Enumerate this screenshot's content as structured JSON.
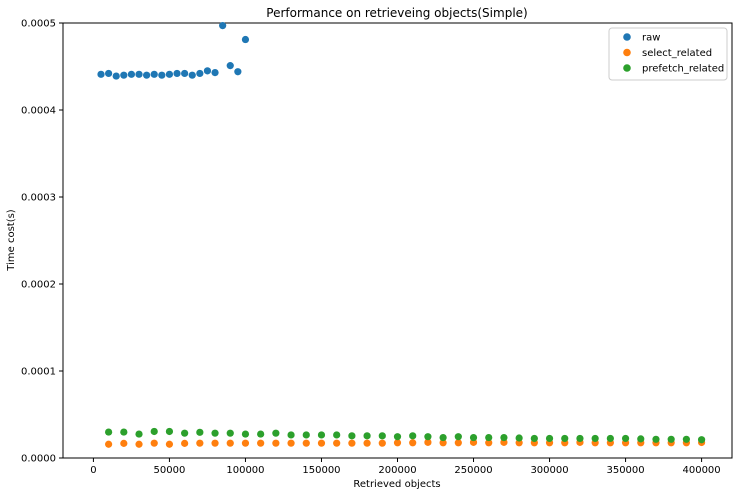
{
  "chart_data": {
    "type": "scatter",
    "title": "Performance on retrieveing objects(Simple)",
    "xlabel": "Retrieved objects",
    "ylabel": "Time cost(s)",
    "xlim": [
      -20000,
      420000
    ],
    "ylim": [
      0,
      0.0005
    ],
    "xticks": [
      0,
      50000,
      100000,
      150000,
      200000,
      250000,
      300000,
      350000,
      400000
    ],
    "yticks": [
      0.0,
      0.0001,
      0.0002,
      0.0003,
      0.0004,
      0.0005
    ],
    "xtick_labels": [
      "0",
      "50000",
      "100000",
      "150000",
      "200000",
      "250000",
      "300000",
      "350000",
      "400000"
    ],
    "ytick_labels": [
      "0.0000",
      "0.0001",
      "0.0002",
      "0.0003",
      "0.0004",
      "0.0005"
    ],
    "grid": false,
    "legend_position": "top-right",
    "series": [
      {
        "name": "raw",
        "color": "#1f77b4",
        "x": [
          5000,
          10000,
          15000,
          20000,
          25000,
          30000,
          35000,
          40000,
          45000,
          50000,
          55000,
          60000,
          65000,
          70000,
          75000,
          80000,
          85000,
          90000,
          95000,
          100000
        ],
        "y": [
          0.000441,
          0.000442,
          0.000439,
          0.00044,
          0.000441,
          0.000441,
          0.00044,
          0.000441,
          0.00044,
          0.000441,
          0.000442,
          0.000442,
          0.00044,
          0.000442,
          0.000445,
          0.000443,
          0.000497,
          0.000451,
          0.000444,
          0.000481
        ]
      },
      {
        "name": "select_related",
        "color": "#ff7f0e",
        "x": [
          10000,
          20000,
          30000,
          40000,
          50000,
          60000,
          70000,
          80000,
          90000,
          100000,
          110000,
          120000,
          130000,
          140000,
          150000,
          160000,
          170000,
          180000,
          190000,
          200000,
          210000,
          220000,
          230000,
          240000,
          250000,
          260000,
          270000,
          280000,
          290000,
          300000,
          310000,
          320000,
          330000,
          340000,
          350000,
          360000,
          370000,
          380000,
          390000,
          400000
        ],
        "y": [
          1.58e-05,
          1.68e-05,
          1.58e-05,
          1.7e-05,
          1.58e-05,
          1.68e-05,
          1.7e-05,
          1.7e-05,
          1.7e-05,
          1.7e-05,
          1.7e-05,
          1.7e-05,
          1.7e-05,
          1.7e-05,
          1.7e-05,
          1.7e-05,
          1.7e-05,
          1.7e-05,
          1.7e-05,
          1.75e-05,
          1.75e-05,
          1.8e-05,
          1.75e-05,
          1.75e-05,
          1.8e-05,
          1.75e-05,
          1.8e-05,
          1.75e-05,
          1.75e-05,
          1.75e-05,
          1.75e-05,
          1.8e-05,
          1.75e-05,
          1.75e-05,
          1.75e-05,
          1.75e-05,
          1.75e-05,
          1.75e-05,
          1.75e-05,
          1.78e-05
        ]
      },
      {
        "name": "prefetch_related",
        "color": "#2ca02c",
        "x": [
          10000,
          20000,
          30000,
          40000,
          50000,
          60000,
          70000,
          80000,
          90000,
          100000,
          110000,
          120000,
          130000,
          140000,
          150000,
          160000,
          170000,
          180000,
          190000,
          200000,
          210000,
          220000,
          230000,
          240000,
          250000,
          260000,
          270000,
          280000,
          290000,
          300000,
          310000,
          320000,
          330000,
          340000,
          350000,
          360000,
          370000,
          380000,
          390000,
          400000
        ],
        "y": [
          2.98e-05,
          2.98e-05,
          2.75e-05,
          3.05e-05,
          3.05e-05,
          2.85e-05,
          2.95e-05,
          2.85e-05,
          2.85e-05,
          2.75e-05,
          2.75e-05,
          2.85e-05,
          2.65e-05,
          2.65e-05,
          2.65e-05,
          2.65e-05,
          2.55e-05,
          2.55e-05,
          2.55e-05,
          2.45e-05,
          2.55e-05,
          2.45e-05,
          2.35e-05,
          2.45e-05,
          2.35e-05,
          2.35e-05,
          2.35e-05,
          2.3e-05,
          2.25e-05,
          2.25e-05,
          2.25e-05,
          2.25e-05,
          2.25e-05,
          2.25e-05,
          2.25e-05,
          2.2e-05,
          2.15e-05,
          2.15e-05,
          2.15e-05,
          2.1e-05
        ]
      }
    ]
  }
}
